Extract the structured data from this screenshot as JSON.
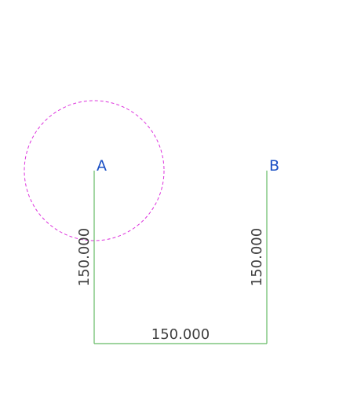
{
  "colors": {
    "background": "#ffffff",
    "segment": "#66bb66",
    "circle": "#dd33dd",
    "point_label": "#1a4fc4",
    "dimension_text": "#404040"
  },
  "points": {
    "a": {
      "label": "A"
    },
    "b": {
      "label": "B"
    }
  },
  "dimensions": {
    "left_vertical": "150.000",
    "right_vertical": "150.000",
    "bottom_horizontal": "150.000"
  },
  "circle": {
    "center_point": "A",
    "style": "dashed"
  }
}
